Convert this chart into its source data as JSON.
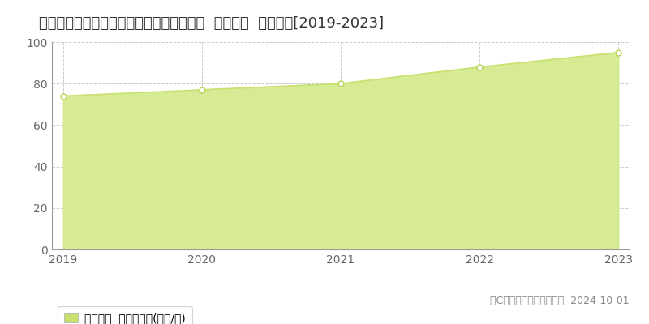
{
  "title": "茨城県つくば市研究学園５丁目１２番４外  基準地価  地価推移[2019-2023]",
  "years": [
    2019,
    2020,
    2021,
    2022,
    2023
  ],
  "values": [
    74.0,
    77.0,
    80.0,
    88.0,
    95.0
  ],
  "ylim": [
    0,
    100
  ],
  "xlim": [
    2019,
    2023
  ],
  "yticks": [
    0,
    20,
    40,
    60,
    80,
    100
  ],
  "xticks": [
    2019,
    2020,
    2021,
    2022,
    2023
  ],
  "line_color": "#c8e06e",
  "fill_color": "#d6eb94",
  "marker_color": "#ffffff",
  "marker_edge_color": "#b8d050",
  "grid_color": "#cccccc",
  "bg_color": "#ffffff",
  "plot_bg_color": "#ffffff",
  "legend_label": "基準地価  平均坪単価(万円/坪)",
  "legend_color": "#c8e06e",
  "copyright_text": "（C）土地価格ドットコム  2024-10-01",
  "title_fontsize": 13,
  "tick_fontsize": 10,
  "legend_fontsize": 10,
  "copyright_fontsize": 9
}
